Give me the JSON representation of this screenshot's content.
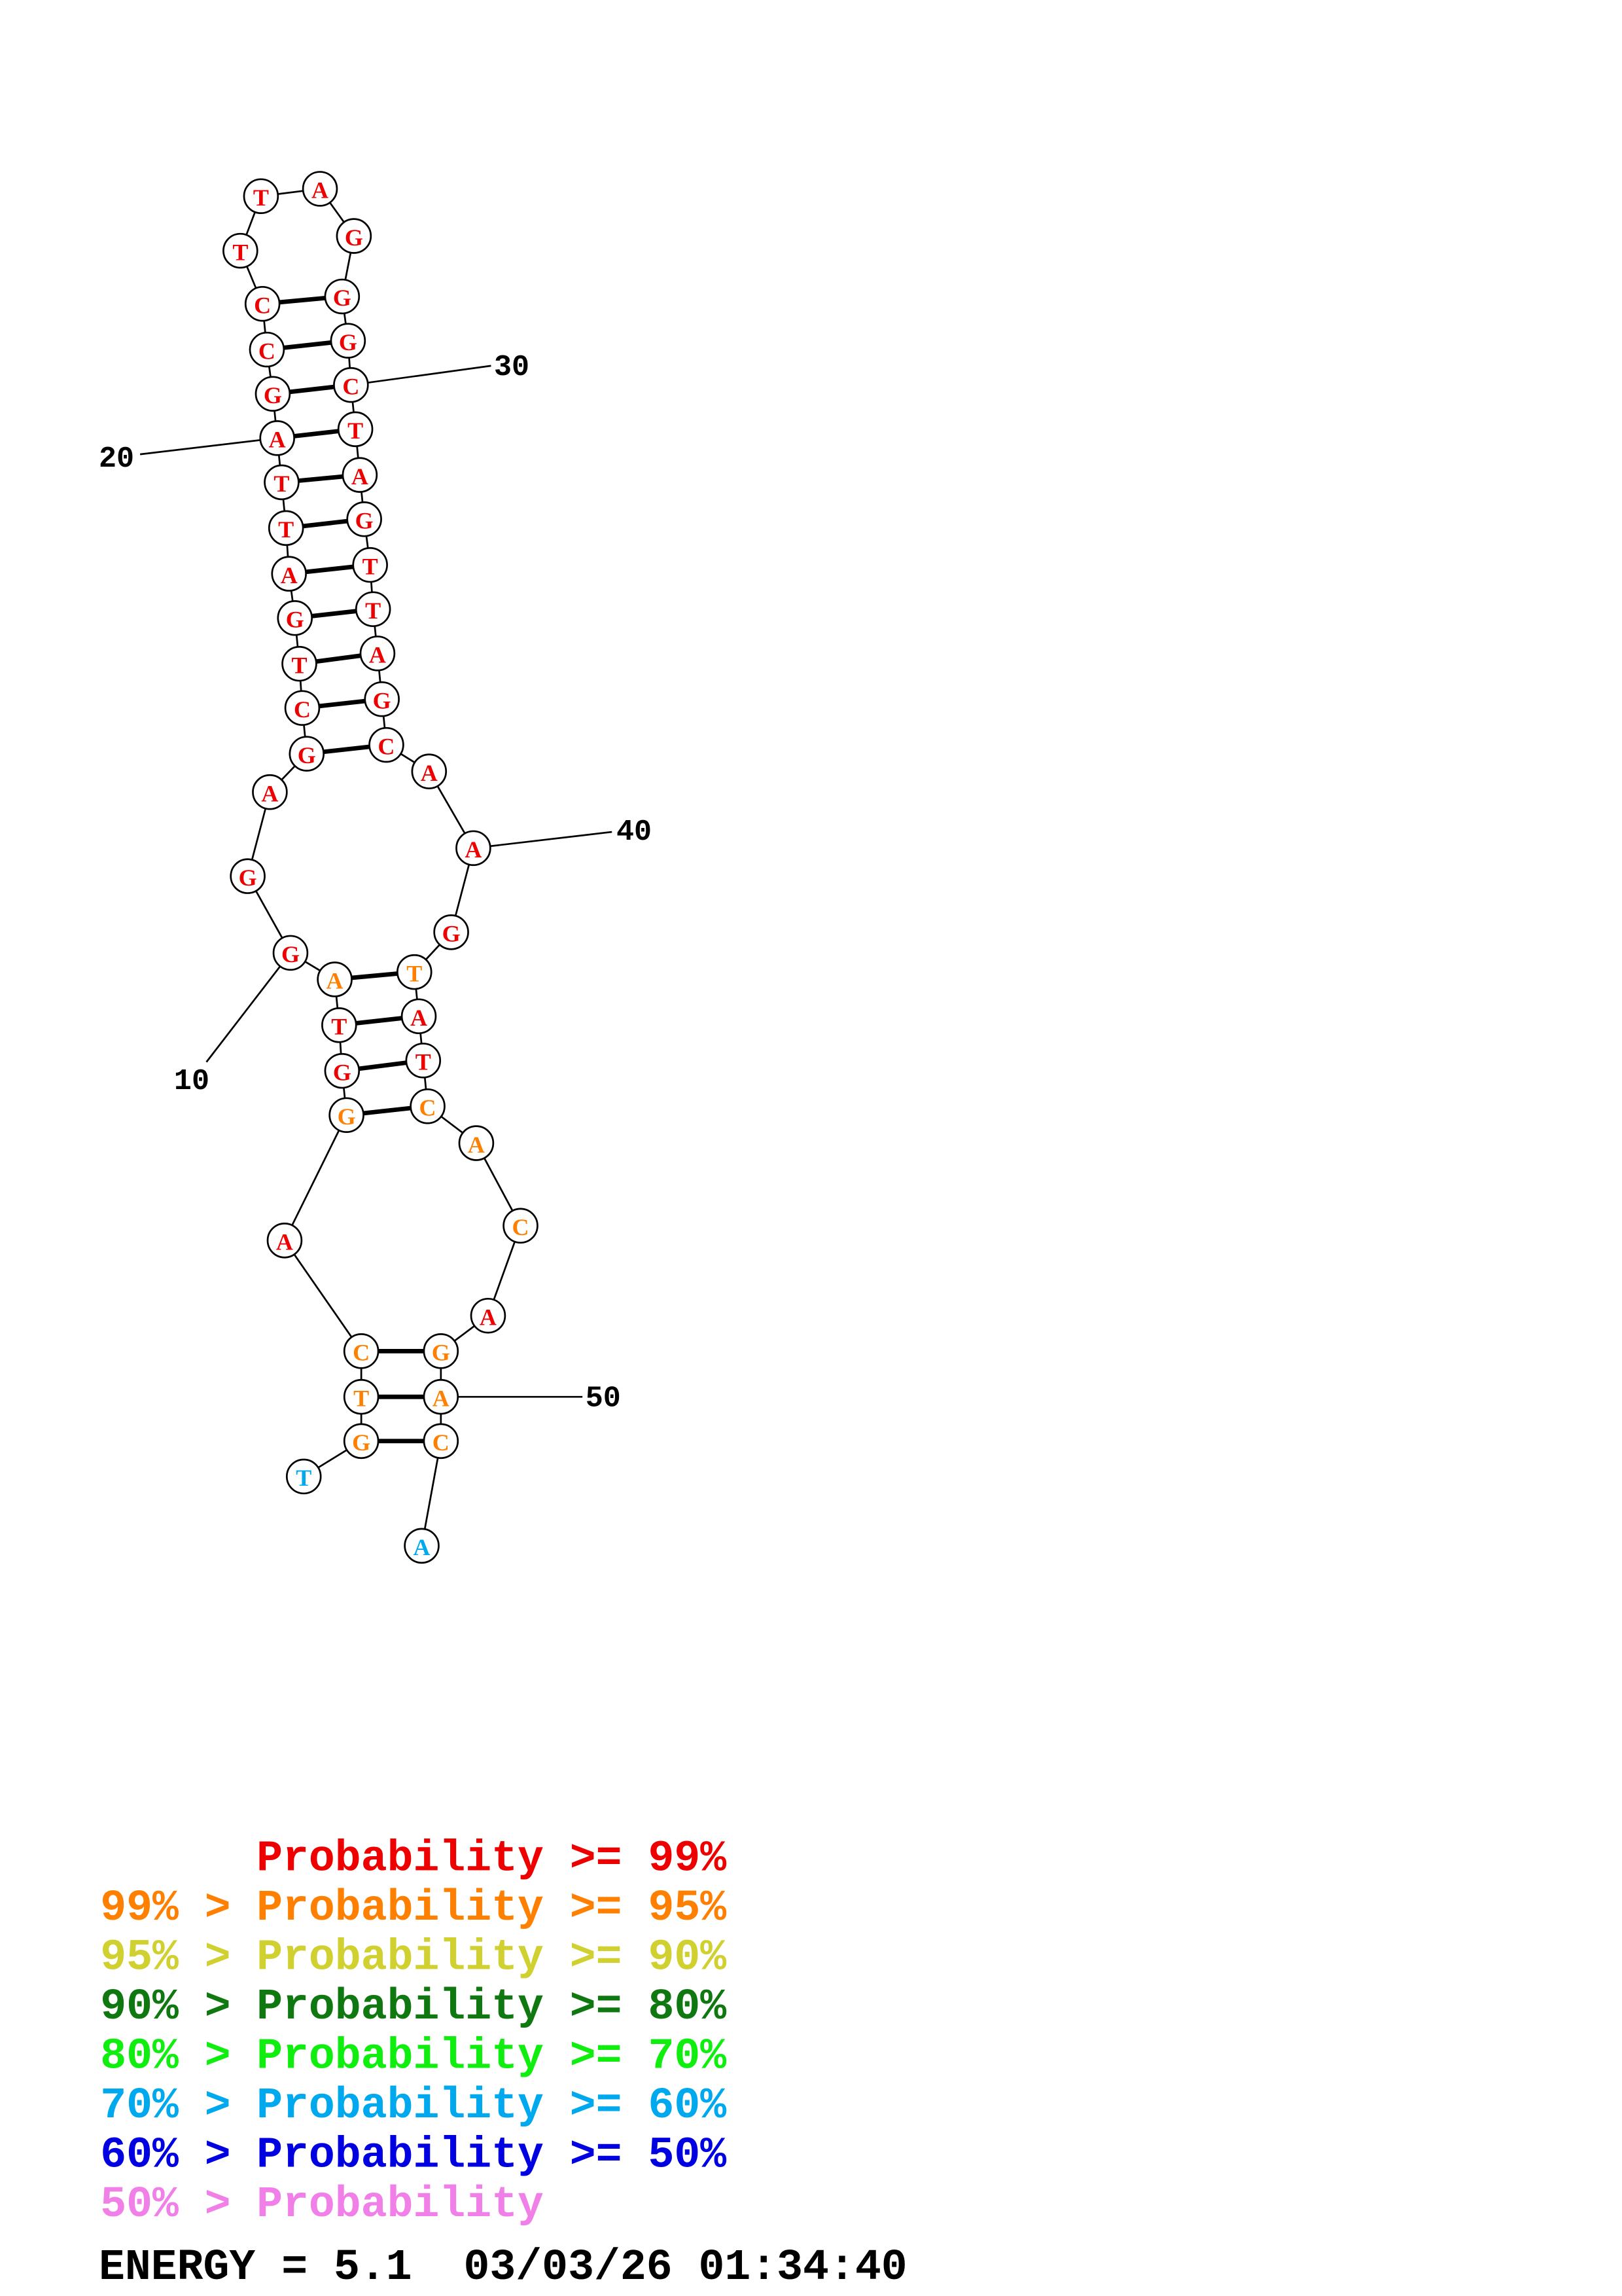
{
  "structure": {
    "sequence": [
      "T",
      "G",
      "T",
      "C",
      "A",
      "G",
      "G",
      "T",
      "A",
      "G",
      "G",
      "A",
      "G",
      "C",
      "T",
      "G",
      "A",
      "T",
      "T",
      "A",
      "G",
      "C",
      "C",
      "T",
      "T",
      "A",
      "G",
      "G",
      "G",
      "C",
      "T",
      "A",
      "G",
      "T",
      "T",
      "A",
      "G",
      "C",
      "A",
      "A",
      "G",
      "T",
      "A",
      "T",
      "C",
      "A",
      "C",
      "A",
      "G",
      "A",
      "C",
      "A"
    ],
    "probability_class": [
      "70",
      "95",
      "95",
      "95",
      "99",
      "95",
      "99",
      "99",
      "95",
      "99",
      "99",
      "99",
      "99",
      "99",
      "99",
      "99",
      "99",
      "99",
      "99",
      "99",
      "99",
      "99",
      "99",
      "99",
      "99",
      "99",
      "99",
      "99",
      "99",
      "99",
      "99",
      "99",
      "99",
      "99",
      "99",
      "99",
      "99",
      "99",
      "99",
      "99",
      "99",
      "95",
      "99",
      "99",
      "95",
      "95",
      "95",
      "99",
      "95",
      "95",
      "95",
      "70"
    ],
    "pairs": [
      [
        2,
        51
      ],
      [
        3,
        50
      ],
      [
        4,
        49
      ],
      [
        6,
        45
      ],
      [
        7,
        44
      ],
      [
        8,
        43
      ],
      [
        9,
        42
      ],
      [
        13,
        38
      ],
      [
        14,
        37
      ],
      [
        15,
        36
      ],
      [
        16,
        35
      ],
      [
        17,
        34
      ],
      [
        18,
        33
      ],
      [
        19,
        32
      ],
      [
        20,
        31
      ],
      [
        21,
        30
      ],
      [
        22,
        29
      ],
      [
        23,
        28
      ]
    ],
    "position_labels": [
      "10",
      "20",
      "30",
      "40",
      "50"
    ]
  },
  "legend": [
    {
      "prefix": "",
      "text": "Probability >= 99%",
      "color": "#ee0000",
      "key": "99"
    },
    {
      "prefix": "99% > ",
      "text": "Probability >= 95%",
      "color": "#ff8000",
      "key": "95"
    },
    {
      "prefix": "95% > ",
      "text": "Probability >= 90%",
      "color": "#d0d030",
      "key": "90"
    },
    {
      "prefix": "90% > ",
      "text": "Probability >= 80%",
      "color": "#107810",
      "key": "80"
    },
    {
      "prefix": "80% > ",
      "text": "Probability >= 70%",
      "color": "#10ee10",
      "key": "70a"
    },
    {
      "prefix": "70% > ",
      "text": "Probability >= 60%",
      "color": "#00a8ee",
      "key": "70"
    },
    {
      "prefix": "60% > ",
      "text": "Probability >= 50%",
      "color": "#0000e0",
      "key": "50"
    },
    {
      "prefix": "50% > ",
      "text": "Probability",
      "color": "#f080e8",
      "key": "0"
    }
  ],
  "footer": {
    "energy": "ENERGY = 5.1",
    "timestamp": "03/03/26 01:34:40"
  }
}
